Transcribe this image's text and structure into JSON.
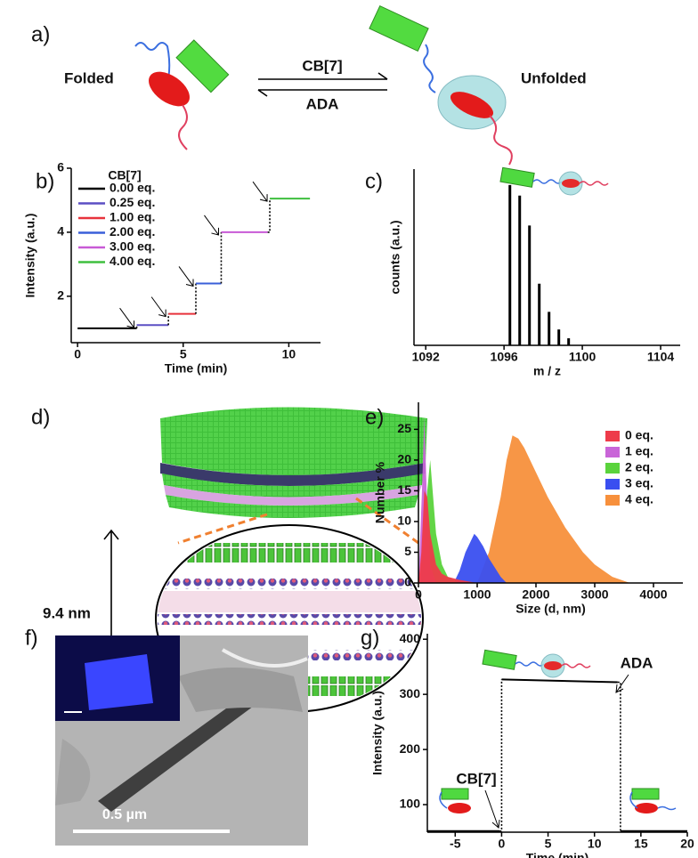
{
  "figure": {
    "a": {
      "label": "a)",
      "left_state": "Folded",
      "forward_reagent": "CB[7]",
      "reverse_reagent": "ADA",
      "right_state": "Unfolded"
    },
    "d": {
      "label": "d)",
      "spacing": "9.4 nm"
    },
    "f": {
      "label": "f)",
      "scale_bar": "0.5 µm"
    }
  },
  "chart_data": [
    {
      "panel_label": "b)",
      "type": "line",
      "x_label": "Time (min)",
      "y_label": "Intensity (a.u.)",
      "legend_title": "CB[7]",
      "legend": "top-left",
      "xlim": [
        -0.3,
        11.5
      ],
      "ylim": [
        0.55,
        6
      ],
      "xticks": [
        0,
        5,
        10
      ],
      "yticks": [
        2,
        4,
        6
      ],
      "series": [
        {
          "name": "0.00 eq.",
          "color": "#000000",
          "x": [
            0,
            2.8
          ],
          "values": [
            1,
            1
          ]
        },
        {
          "name": "0.25 eq.",
          "color": "#5b4fc4",
          "x": [
            2.8,
            4.3
          ],
          "values": [
            1.1,
            1.1
          ]
        },
        {
          "name": "1.00 eq.",
          "color": "#e8333c",
          "x": [
            4.3,
            5.6
          ],
          "values": [
            1.45,
            1.45
          ]
        },
        {
          "name": "2.00 eq.",
          "color": "#3a5fd9",
          "x": [
            5.6,
            6.8
          ],
          "values": [
            2.4,
            2.4
          ]
        },
        {
          "name": "3.00 eq.",
          "color": "#c85ad6",
          "x": [
            6.8,
            9
          ],
          "values": [
            4,
            4
          ]
        },
        {
          "name": "4.00 eq.",
          "color": "#3fbf3f",
          "x": [
            9.1,
            11
          ],
          "values": [
            5.05,
            5.05
          ]
        }
      ]
    },
    {
      "panel_label": "c)",
      "type": "bar",
      "x_label": "m / z",
      "y_label": "counts (a.u.)",
      "color": "#000000",
      "xlim": [
        1091.4,
        1105
      ],
      "ylim": [
        0,
        100
      ],
      "xticks": [
        1092,
        1096,
        1100,
        1104
      ],
      "x": [
        1096.3,
        1096.8,
        1097.3,
        1097.8,
        1098.3,
        1098.8,
        1099.3
      ],
      "values": [
        91,
        85,
        68,
        35,
        19,
        9,
        4
      ]
    },
    {
      "panel_label": "e)",
      "type": "area",
      "x_label": "Size (d, nm)",
      "y_label": "Number %",
      "legend": "top-right",
      "xlim": [
        0,
        4500
      ],
      "ylim": [
        0,
        29.4
      ],
      "xticks": [
        0,
        1000,
        2000,
        3000,
        4000
      ],
      "yticks": [
        0,
        5,
        10,
        15,
        20,
        25
      ],
      "series": [
        {
          "name": "0 eq.",
          "color": "#ee3b4a",
          "x": [
            0,
            50,
            100,
            150,
            200,
            300,
            400,
            500,
            700,
            1000
          ],
          "values": [
            0,
            5,
            15,
            14,
            8,
            3,
            1.5,
            1,
            0.5,
            0
          ]
        },
        {
          "name": "1 eq.",
          "color": "#c965d8",
          "x": [
            0,
            60,
            100,
            150,
            200,
            300
          ],
          "values": [
            0,
            15,
            27,
            12,
            3,
            0
          ]
        },
        {
          "name": "2 eq.",
          "color": "#5ad33c",
          "x": [
            0,
            100,
            150,
            200,
            250,
            300,
            400,
            500,
            700
          ],
          "values": [
            0,
            5,
            15,
            20,
            14,
            8,
            3,
            1,
            0
          ]
        },
        {
          "name": "3 eq.",
          "color": "#3a4ff0",
          "x": [
            600,
            700,
            800,
            900,
            950,
            1000,
            1100,
            1200,
            1400,
            1500
          ],
          "values": [
            0,
            2,
            5,
            7,
            8,
            7.5,
            6,
            4,
            1,
            0
          ]
        },
        {
          "name": "4 eq.",
          "color": "#f7903c",
          "x": [
            1000,
            1200,
            1400,
            1500,
            1600,
            1700,
            1800,
            2000,
            2200,
            2500,
            2800,
            3000,
            3300,
            3600
          ],
          "values": [
            0,
            5,
            14,
            20,
            24,
            23.5,
            22,
            18,
            14,
            9,
            5,
            3,
            1,
            0
          ]
        }
      ]
    },
    {
      "panel_label": "g)",
      "type": "line",
      "x_label": "Time (min)",
      "y_label": "Intensity (a.u.)",
      "annotations": [
        "CB[7]",
        "ADA"
      ],
      "xlim": [
        -8,
        20
      ],
      "ylim": [
        50,
        410
      ],
      "xticks": [
        -5,
        0,
        5,
        10,
        15,
        20
      ],
      "yticks": [
        100,
        200,
        300,
        400
      ],
      "series": [
        {
          "color": "#000000",
          "x": [
            -8,
            -0.2,
            -0.1,
            0,
            12.5,
            12.6,
            12.8,
            20
          ],
          "values": [
            52,
            52,
            null,
            327,
            322,
            null,
            52,
            52
          ]
        }
      ]
    }
  ]
}
